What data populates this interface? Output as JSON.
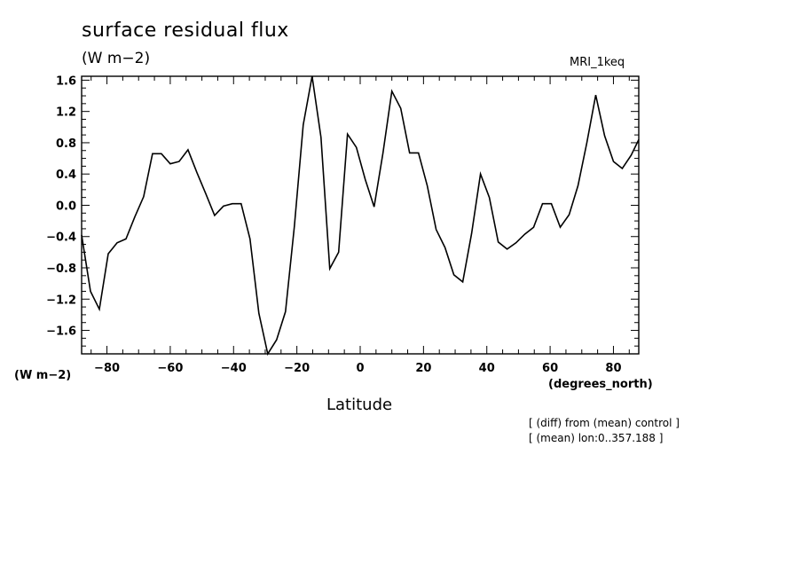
{
  "chart_data": {
    "type": "line",
    "title": "surface residual flux",
    "units_top": "(W m−2)",
    "units_left": "(W m−2)",
    "model_label": "MRI_1keq",
    "xlabel": "Latitude",
    "x_units_label": "(degrees_north)",
    "notes": [
      "[ (diff) from (mean) control ]",
      "[ (mean) lon:0..357.188 ]"
    ],
    "xlim": [
      -88,
      88
    ],
    "ylim": [
      -1.9,
      1.65
    ],
    "xticks": [
      -80,
      -60,
      -40,
      -20,
      0,
      20,
      40,
      60,
      80
    ],
    "xtick_labels": [
      "−80",
      "−60",
      "−40",
      "−20",
      "0",
      "20",
      "40",
      "60",
      "80"
    ],
    "yticks": [
      -1.6,
      -1.2,
      -0.8,
      -0.4,
      0.0,
      0.4,
      0.8,
      1.2,
      1.6
    ],
    "ytick_labels": [
      "−1.6",
      "−1.2",
      "−0.8",
      "−0.4",
      "0.0",
      "0.4",
      "0.8",
      "1.2",
      "1.6"
    ],
    "grid": false,
    "series": [
      {
        "x": [
          -88,
          -85.2,
          -82.4,
          -79.6,
          -76.8,
          -74.0,
          -71.2,
          -68.4,
          -65.6,
          -62.8,
          -60.0,
          -57.2,
          -54.4,
          -51.6,
          -48.8,
          -46.0,
          -43.2,
          -40.4,
          -37.6,
          -34.8,
          -32.0,
          -29.2,
          -26.4,
          -23.6,
          -20.8,
          -18.0,
          -15.2,
          -12.4,
          -9.6,
          -6.8,
          -4.0,
          -1.2,
          1.6,
          4.4,
          7.2,
          10.0,
          12.8,
          15.6,
          18.4,
          21.2,
          24.0,
          26.8,
          29.6,
          32.4,
          35.2,
          38.0,
          40.8,
          43.6,
          46.4,
          49.2,
          52.0,
          54.8,
          57.6,
          60.4,
          63.2,
          66.0,
          68.8,
          71.6,
          74.4,
          77.2,
          80.0,
          82.8,
          85.6,
          88.0
        ],
        "values": [
          -0.38,
          -1.1,
          -1.33,
          -0.62,
          -0.48,
          -0.43,
          -0.15,
          0.11,
          0.66,
          0.66,
          0.53,
          0.56,
          0.71,
          0.42,
          0.15,
          -0.13,
          -0.01,
          0.02,
          0.02,
          -0.43,
          -1.38,
          -1.9,
          -1.72,
          -1.36,
          -0.27,
          1.03,
          1.65,
          0.87,
          -0.81,
          -0.6,
          0.91,
          0.74,
          0.33,
          -0.02,
          0.67,
          1.46,
          1.24,
          0.67,
          0.67,
          0.25,
          -0.31,
          -0.54,
          -0.89,
          -0.98,
          -0.36,
          0.4,
          0.1,
          -0.47,
          -0.56,
          -0.48,
          -0.37,
          -0.28,
          0.02,
          0.02,
          -0.28,
          -0.12,
          0.25,
          0.8,
          1.41,
          0.89,
          0.56,
          0.47,
          0.64,
          0.84
        ]
      }
    ]
  }
}
